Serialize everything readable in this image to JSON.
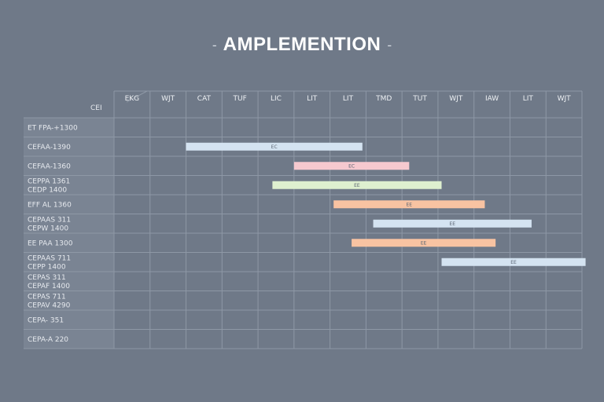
{
  "title": "AMPLEMENTION",
  "title_dash": "-",
  "corner_label": "CEI",
  "colors": {
    "background": "#6f7988",
    "label_panel": "#7a8493",
    "grid": "#8e98a6",
    "blue": "#d4e3f1",
    "pink": "#f6c9cf",
    "green": "#def0cf",
    "orange": "#f8c3a2"
  },
  "chart_data": {
    "type": "gantt",
    "title": "AMPLEMENTION",
    "columns": [
      "EKG",
      "WJT",
      "CAT",
      "TUF",
      "LIC",
      "LIT",
      "LIT",
      "TMD",
      "TUT",
      "WJT",
      "IAW",
      "LIT",
      "WJT"
    ],
    "rows": [
      [
        "ET FPA-+1300"
      ],
      [
        "CEFAA-1390"
      ],
      [
        "CEFAA-1360"
      ],
      [
        "CEPPA 1361",
        "CEDP 1400"
      ],
      [
        "EFF AL 1360"
      ],
      [
        "CEPAAS 311",
        "CEPW 1400"
      ],
      [
        "EE PAA 1300"
      ],
      [
        "CEPAAS 711",
        "CEPP 1400"
      ],
      [
        "CEPAS 311",
        "CEPAF 1400"
      ],
      [
        "CEPAS 711",
        "CEPAV 4290"
      ],
      [
        "CEPA- 351"
      ],
      [
        "CEPA-A 220"
      ]
    ],
    "tasks": [
      {
        "row": 1,
        "start": 2.0,
        "end": 6.9,
        "color": "blue",
        "label": "EC"
      },
      {
        "row": 2,
        "start": 5.0,
        "end": 8.2,
        "color": "pink",
        "label": "EC"
      },
      {
        "row": 3,
        "start": 4.4,
        "end": 9.1,
        "color": "green",
        "label": "EE"
      },
      {
        "row": 4,
        "start": 6.1,
        "end": 10.3,
        "color": "orange",
        "label": "EE"
      },
      {
        "row": 5,
        "start": 7.2,
        "end": 11.6,
        "color": "blue",
        "label": "EE"
      },
      {
        "row": 6,
        "start": 6.6,
        "end": 10.6,
        "color": "orange",
        "label": "EE"
      },
      {
        "row": 7,
        "start": 9.1,
        "end": 13.1,
        "color": "blue",
        "label": "EE"
      }
    ]
  }
}
